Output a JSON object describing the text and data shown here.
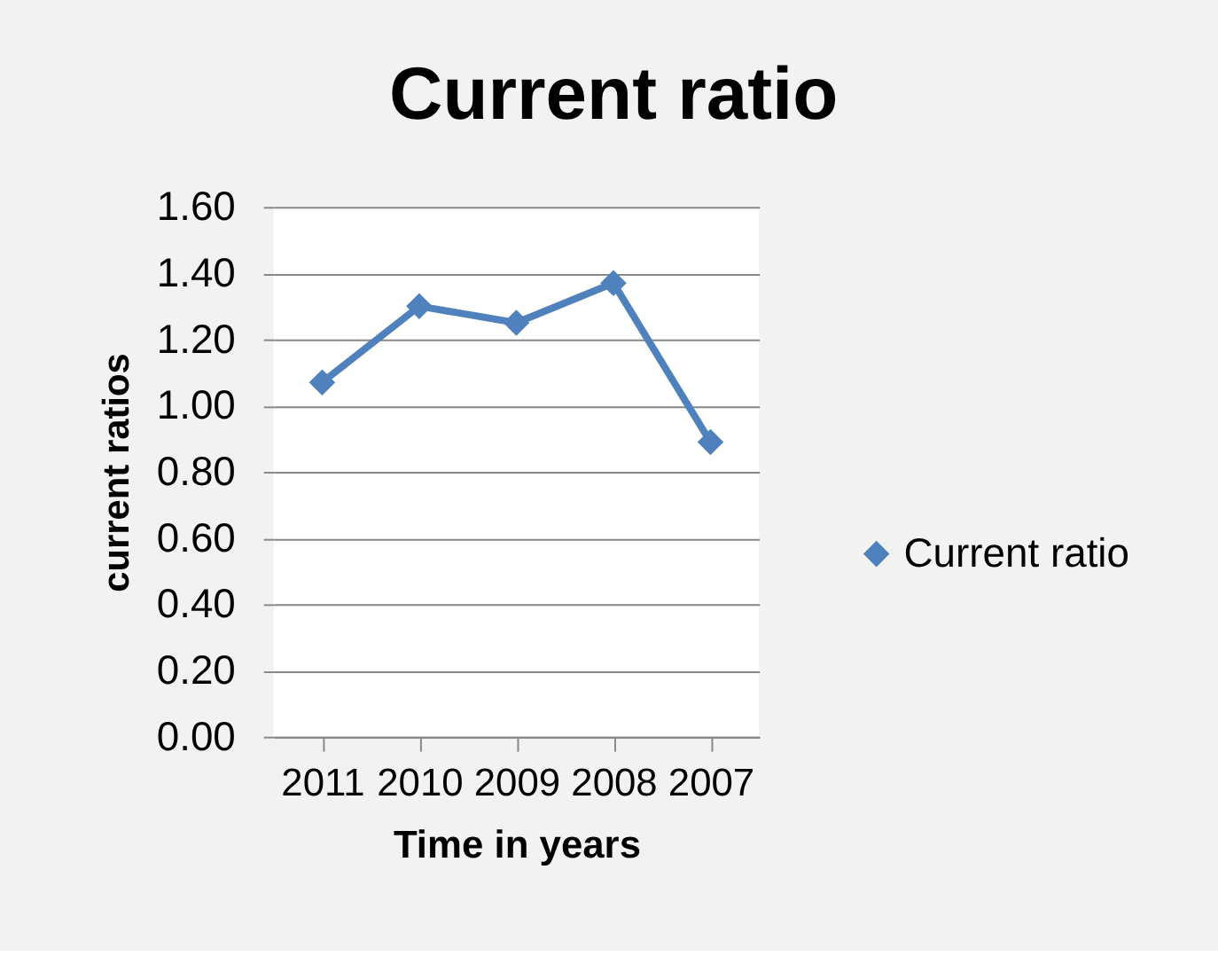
{
  "chart_data": {
    "type": "line",
    "title": "Current ratio",
    "xlabel": "Time in years",
    "ylabel": "current ratios",
    "categories": [
      "2011",
      "2010",
      "2009",
      "2008",
      "2007"
    ],
    "series": [
      {
        "name": "Current ratio",
        "color": "#4f81bd",
        "values": [
          1.07,
          1.3,
          1.25,
          1.37,
          0.89
        ]
      }
    ],
    "ylim": [
      0,
      1.6
    ],
    "yticks": [
      {
        "value": 0,
        "label": "0.00"
      },
      {
        "value": 0.2,
        "label": "0.20"
      },
      {
        "value": 0.4,
        "label": "0.40"
      },
      {
        "value": 0.6,
        "label": "0.60"
      },
      {
        "value": 0.8,
        "label": "0.80"
      },
      {
        "value": 1.0,
        "label": "1.00"
      },
      {
        "value": 1.2,
        "label": "1.20"
      },
      {
        "value": 1.4,
        "label": "1.40"
      },
      {
        "value": 1.6,
        "label": "1.60"
      }
    ],
    "grid": "y",
    "legend": "right",
    "marker": "diamond",
    "line_style": "solid"
  }
}
